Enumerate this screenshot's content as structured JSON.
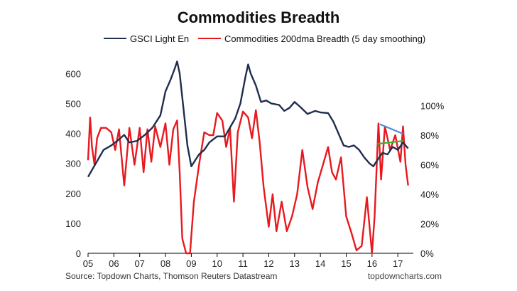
{
  "chart_data": {
    "type": "line",
    "title": "Commodities Breadth",
    "legend_position": "top",
    "grid": false,
    "x_tick_labels": [
      "05",
      "06",
      "07",
      "08",
      "09",
      "10",
      "11",
      "12",
      "13",
      "14",
      "15",
      "16",
      "17"
    ],
    "x_range": [
      2005.0,
      2017.6
    ],
    "left_axis": {
      "ticks": [
        "0",
        "100",
        "200",
        "300",
        "400",
        "500",
        "600"
      ],
      "range": [
        0,
        660
      ]
    },
    "right_axis": {
      "ticks": [
        "0%",
        "20%",
        "40%",
        "60%",
        "80%",
        "100%"
      ],
      "range": [
        0,
        1.34
      ]
    },
    "series": [
      {
        "name": "GSCI Light En",
        "axis": "left",
        "color": "#1f2d4e",
        "x": [
          2005.0,
          2005.3,
          2005.6,
          2005.9,
          2006.2,
          2006.4,
          2006.6,
          2006.9,
          2007.2,
          2007.5,
          2007.8,
          2008.0,
          2008.2,
          2008.35,
          2008.45,
          2008.55,
          2008.7,
          2008.85,
          2009.0,
          2009.15,
          2009.3,
          2009.5,
          2009.7,
          2010.0,
          2010.3,
          2010.5,
          2010.7,
          2010.9,
          2011.1,
          2011.2,
          2011.3,
          2011.5,
          2011.7,
          2011.9,
          2012.1,
          2012.4,
          2012.6,
          2012.8,
          2013.0,
          2013.2,
          2013.5,
          2013.8,
          2014.0,
          2014.3,
          2014.5,
          2014.7,
          2014.9,
          2015.1,
          2015.3,
          2015.5,
          2015.7,
          2015.9,
          2016.05,
          2016.2,
          2016.4,
          2016.6,
          2016.8,
          2017.0,
          2017.2,
          2017.4
        ],
        "y": [
          255,
          300,
          345,
          360,
          380,
          395,
          370,
          375,
          395,
          420,
          460,
          540,
          580,
          615,
          640,
          600,
          480,
          360,
          290,
          310,
          330,
          345,
          370,
          390,
          390,
          420,
          450,
          500,
          590,
          630,
          600,
          560,
          505,
          510,
          500,
          495,
          475,
          485,
          505,
          490,
          465,
          475,
          470,
          468,
          440,
          400,
          360,
          355,
          360,
          345,
          320,
          300,
          290,
          310,
          335,
          330,
          355,
          345,
          370,
          350
        ]
      },
      {
        "name": "Commodities 200dma Breadth (5 day smoothing)",
        "axis": "right",
        "color": "#e8191f",
        "x": [
          2005.0,
          2005.08,
          2005.15,
          2005.25,
          2005.35,
          2005.5,
          2005.7,
          2005.9,
          2006.05,
          2006.2,
          2006.4,
          2006.6,
          2006.8,
          2007.0,
          2007.15,
          2007.3,
          2007.45,
          2007.6,
          2007.8,
          2008.0,
          2008.15,
          2008.3,
          2008.45,
          2008.55,
          2008.65,
          2008.8,
          2008.95,
          2009.1,
          2009.3,
          2009.5,
          2009.7,
          2009.85,
          2010.0,
          2010.2,
          2010.35,
          2010.5,
          2010.65,
          2010.8,
          2011.0,
          2011.2,
          2011.35,
          2011.5,
          2011.65,
          2011.8,
          2012.0,
          2012.15,
          2012.3,
          2012.5,
          2012.7,
          2012.9,
          2013.1,
          2013.3,
          2013.5,
          2013.7,
          2013.9,
          2014.1,
          2014.3,
          2014.45,
          2014.6,
          2014.8,
          2015.0,
          2015.2,
          2015.4,
          2015.6,
          2015.8,
          2016.0,
          2016.1,
          2016.25,
          2016.35,
          2016.5,
          2016.7,
          2016.9,
          2017.1,
          2017.2,
          2017.3,
          2017.4
        ],
        "y": [
          0.63,
          0.92,
          0.72,
          0.6,
          0.78,
          0.85,
          0.85,
          0.82,
          0.7,
          0.84,
          0.46,
          0.85,
          0.6,
          0.85,
          0.55,
          0.84,
          0.62,
          0.86,
          0.72,
          0.88,
          0.6,
          0.84,
          0.9,
          0.55,
          0.1,
          0.0,
          0.0,
          0.35,
          0.6,
          0.82,
          0.8,
          0.8,
          0.95,
          0.9,
          0.72,
          0.85,
          0.35,
          0.82,
          0.96,
          0.92,
          0.78,
          0.97,
          0.75,
          0.45,
          0.18,
          0.4,
          0.15,
          0.35,
          0.15,
          0.25,
          0.4,
          0.7,
          0.45,
          0.3,
          0.48,
          0.6,
          0.72,
          0.55,
          0.5,
          0.65,
          0.25,
          0.14,
          0.02,
          0.05,
          0.38,
          0.0,
          0.25,
          0.88,
          0.5,
          0.86,
          0.7,
          0.8,
          0.62,
          0.86,
          0.6,
          0.46
        ]
      }
    ],
    "annotations": [
      {
        "type": "trendline",
        "color": "#2eb82e",
        "axis": "left",
        "from": [
          2016.2,
          365
        ],
        "to": [
          2017.2,
          375
        ]
      },
      {
        "type": "trendline",
        "color": "#4a90d9",
        "axis": "right",
        "from": [
          2016.3,
          0.875
        ],
        "to": [
          2017.2,
          0.81
        ]
      }
    ],
    "source_note": "Source: Topdown Charts, Thomson Reuters Datastream",
    "branding": "topdowncharts.com"
  }
}
